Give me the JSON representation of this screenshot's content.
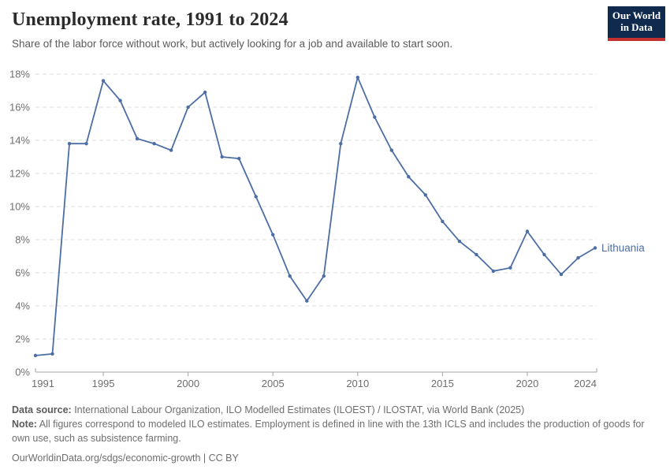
{
  "header": {
    "title": "Unemployment rate, 1991 to 2024",
    "subtitle": "Share of the labor force without work, but actively looking for a job and available to start soon."
  },
  "logo": {
    "line1": "Our World",
    "line2": "in Data",
    "bg_color": "#102A4E",
    "accent_color": "#C3312F"
  },
  "chart_data": {
    "type": "line",
    "title": "Unemployment rate, 1991 to 2024",
    "xlabel": "",
    "ylabel": "",
    "xlim": [
      1991,
      2024
    ],
    "ylim": [
      0,
      18
    ],
    "grid": true,
    "legend_position": "end-of-line",
    "x_ticks": [
      1991,
      1995,
      2000,
      2005,
      2010,
      2015,
      2020,
      2024
    ],
    "x_tick_labels": [
      "1991",
      "1995",
      "2000",
      "2005",
      "2010",
      "2015",
      "2020",
      "2024"
    ],
    "y_ticks": [
      0,
      2,
      4,
      6,
      8,
      10,
      12,
      14,
      16,
      18
    ],
    "y_tick_labels": [
      "0%",
      "2%",
      "4%",
      "6%",
      "8%",
      "10%",
      "12%",
      "14%",
      "16%",
      "18%"
    ],
    "x": [
      1991,
      1992,
      1993,
      1994,
      1995,
      1996,
      1997,
      1998,
      1999,
      2000,
      2001,
      2002,
      2003,
      2004,
      2005,
      2006,
      2007,
      2008,
      2009,
      2010,
      2011,
      2012,
      2013,
      2014,
      2015,
      2016,
      2017,
      2018,
      2019,
      2020,
      2021,
      2022,
      2023,
      2024
    ],
    "series": [
      {
        "name": "Lithuania",
        "color": "#4C6EA4",
        "values": [
          1.0,
          1.1,
          13.8,
          13.8,
          17.6,
          16.4,
          14.1,
          13.8,
          13.4,
          16.0,
          16.9,
          13.0,
          12.9,
          10.6,
          8.3,
          5.8,
          4.3,
          5.8,
          13.8,
          17.8,
          15.4,
          13.4,
          11.8,
          10.7,
          9.1,
          7.9,
          7.1,
          6.1,
          6.3,
          8.5,
          7.1,
          5.9,
          6.9,
          7.5
        ]
      }
    ]
  },
  "colors": {
    "gridline": "#dcdcdc",
    "axis_line": "#a3a3a3",
    "axis_text": "#6e6e6e"
  },
  "footer": {
    "datasource_label": "Data source:",
    "datasource_text": " International Labour Organization, ILO Modelled Estimates (ILOEST) / ILOSTAT, via World Bank (2025)",
    "note_label": "Note:",
    "note_text": " All figures correspond to modeled ILO estimates. Employment is defined in line with the 13th ICLS and includes the production of goods for own use, such as subsistence farming.",
    "url": "OurWorldinData.org/sdgs/economic-growth",
    "license": " | CC BY"
  }
}
